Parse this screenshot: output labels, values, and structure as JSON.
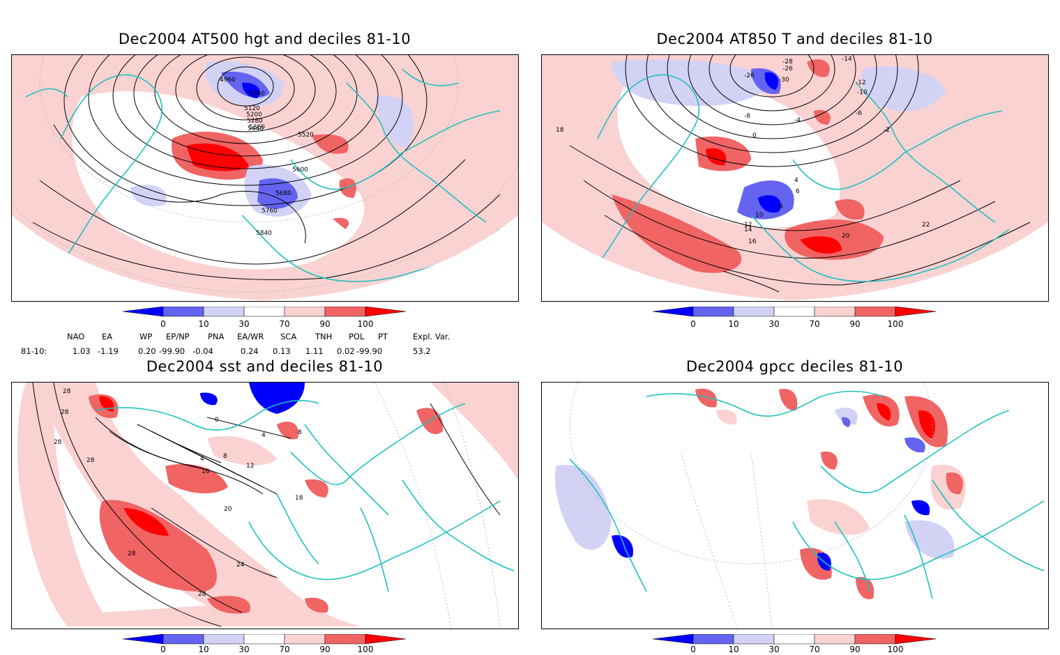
{
  "panels": [
    {
      "title": "Dec2004 AT500 hgt and deciles 81-10",
      "contour_labels": [
        "4960",
        "5040",
        "5120",
        "5200",
        "5280",
        "5360",
        "5440",
        "5520",
        "5600",
        "5680",
        "5760",
        "5840"
      ]
    },
    {
      "title": "Dec2004 AT850 T and deciles 81-10",
      "contour_labels": [
        "-28",
        "-26",
        "-30",
        "-26",
        "-14",
        "-12",
        "-10",
        "-8",
        "-6",
        "-4",
        "-2",
        "0",
        "4",
        "6",
        "8",
        "10",
        "12",
        "14",
        "16",
        "18",
        "20",
        "22"
      ]
    },
    {
      "title": "Dec2004 sst and deciles 81-10",
      "contour_labels": [
        "28",
        "28",
        "28",
        "28",
        "0",
        "0",
        "4",
        "4",
        "8",
        "8",
        "12",
        "16",
        "18",
        "20",
        "24",
        "28",
        "28"
      ]
    },
    {
      "title": "Dec2004 gpcc deciles 81-10",
      "contour_labels": []
    }
  ],
  "colorbar": {
    "ticks": [
      "0",
      "10",
      "30",
      "70",
      "90",
      "100"
    ],
    "colors": [
      "#0000ff",
      "#6464f0",
      "#d2d2f5",
      "#ffffff",
      "#fad2d2",
      "#f06464",
      "#ff0000"
    ]
  },
  "indices": {
    "header": [
      "NAO",
      "EA",
      "WP",
      "EP/NP",
      "PNA",
      "EA/WR",
      "SCA",
      "TNH",
      "POL",
      "PT",
      "Expl. Var."
    ],
    "row_label": "81-10:",
    "values": [
      "1.03",
      "-1.19",
      "0.20",
      "-99.90",
      "-0.04",
      "0.24",
      "0.13",
      "1.11",
      "0.02",
      "-99.90",
      "53.2"
    ]
  },
  "style": {
    "coast_color": "#20c0c0",
    "contour_color": "#000000"
  }
}
